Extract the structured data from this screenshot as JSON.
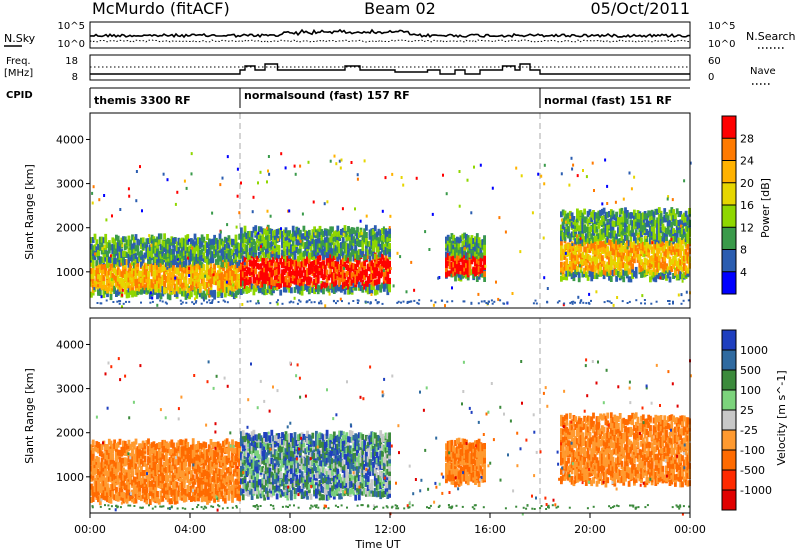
{
  "chart_data": {
    "type": "heatmap",
    "header": {
      "title_left": "McMurdo (fitACF)",
      "title_center": "Beam 02",
      "title_right": "05/Oct/2011"
    },
    "x_axis": {
      "label": "Time UT",
      "ticks": [
        "00:00",
        "04:00",
        "08:00",
        "12:00",
        "16:00",
        "20:00",
        "00:00"
      ],
      "range_hours": [
        0,
        24
      ]
    },
    "noise_panel": {
      "left_label": "N.Sky",
      "right_label": "N.Search",
      "tick_top": "10^5",
      "tick_bottom": "10^0",
      "tick_top_right": "10^5",
      "tick_bottom_right": "10^0"
    },
    "freq_panel": {
      "left_label_1": "Freq.",
      "left_label_2": "[MHz]",
      "right_label": "Nave",
      "ticks_left": [
        "18",
        "8"
      ],
      "ticks_right": [
        "60",
        "0"
      ]
    },
    "cpid_panel": {
      "label": "CPID",
      "programs": [
        {
          "name": "themis 3300 RF",
          "start_hour": 0,
          "end_hour": 6
        },
        {
          "name": "normalsound (fast) 157 RF",
          "start_hour": 6,
          "end_hour": 18
        },
        {
          "name": "normal (fast) 151 RF",
          "start_hour": 18,
          "end_hour": 24
        }
      ]
    },
    "power_panel": {
      "ylabel": "Slant Range [km]",
      "yticks": [
        "4000",
        "3000",
        "2000",
        "1000"
      ],
      "ytick_values": [
        4000,
        3000,
        2000,
        1000
      ],
      "yrange_km": [
        180,
        4600
      ],
      "colorbar_label": "Power [dB]",
      "colorbar_ticks": [
        "28",
        "24",
        "20",
        "16",
        "12",
        "8",
        "4"
      ],
      "colorbar_colors": [
        "#ff0000",
        "#ff7a00",
        "#ffb200",
        "#e6d600",
        "#8fd700",
        "#3a9a4a",
        "#2b5db0",
        "#0000ff"
      ]
    },
    "velocity_panel": {
      "ylabel": "Slant Range [km]",
      "yticks": [
        "4000",
        "3000",
        "2000",
        "1000"
      ],
      "ytick_values": [
        4000,
        3000,
        2000,
        1000
      ],
      "yrange_km": [
        180,
        4600
      ],
      "colorbar_label": "Velocity [m s^-1]",
      "colorbar_ticks": [
        "1000",
        "500",
        "100",
        "25",
        "-25",
        "-100",
        "-500",
        "-1000"
      ],
      "colorbar_colors": [
        "#1f3fbf",
        "#2f6aa0",
        "#3c8a3c",
        "#7cd37c",
        "#c8c8c8",
        "#ff9a30",
        "#ff6a00",
        "#ff2a00",
        "#e00000"
      ]
    },
    "echo_regions": [
      {
        "t0": 0.0,
        "t1": 6.0,
        "r0": 500,
        "r1": 1800,
        "power": "mixed",
        "vel": "negative"
      },
      {
        "t0": 6.0,
        "t1": 12.0,
        "r0": 600,
        "r1": 2000,
        "power": "strong",
        "vel": "mixed"
      },
      {
        "t0": 14.2,
        "t1": 15.8,
        "r0": 900,
        "r1": 1800,
        "power": "strong",
        "vel": "negative"
      },
      {
        "t0": 18.8,
        "t1": 24.0,
        "r0": 900,
        "r1": 2400,
        "power": "mixed",
        "vel": "negative"
      }
    ]
  }
}
